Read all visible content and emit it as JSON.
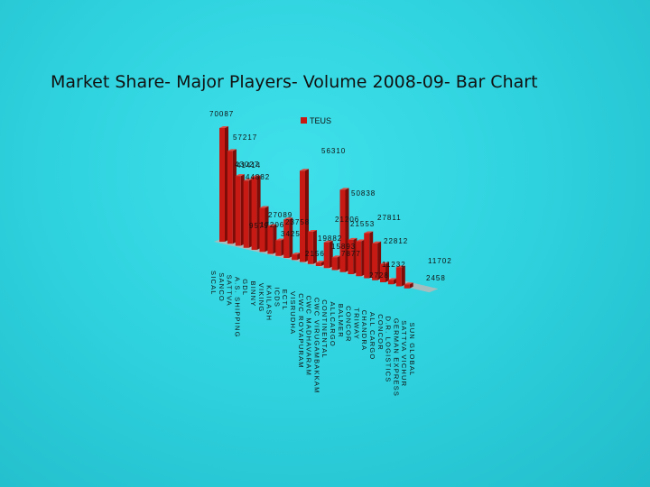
{
  "title": "Market Share- Major Players- Volume 2008-09- Bar Chart",
  "colors": {
    "bar": "#c81a14",
    "bar_side": "#7d0c08",
    "bar_top": "#e04a40",
    "floor": "#b8b8b8",
    "background": "#2fd3df"
  },
  "chart_data": {
    "type": "bar",
    "title": "Market Share- Major Players- Volume 2008-09- Bar Chart",
    "xlabel": "",
    "ylabel": "",
    "legend": {
      "position": "top-right",
      "entries": [
        "TEUS"
      ]
    },
    "categories": [
      "SICAL",
      "SANCO",
      "SATTVA",
      "A.S. SHIPPING",
      "GDL",
      "BINNY",
      "VIKING",
      "KAILASH",
      "ICDS",
      "ECTL",
      "VISRUDHA",
      "CWC ROYAPURAM",
      "CWC MADHAVARAM",
      "CWC VIRUGAMBAKKAM",
      "CONTINENTAL",
      "ALLCARGO",
      "BALMER",
      "CONCOR",
      "TRIWAY",
      "CHANDRA",
      "ALL CARGO",
      "CONCOR",
      "D.R. LOGISTICS",
      "GERMAN EXPRESS",
      "SATTVA VICHUR",
      "SUN GLOBAL"
    ],
    "series": [
      {
        "name": "TEUS",
        "values": [
          70087,
          57217,
          43027,
          41414,
          44882,
          27089,
          17206,
          9579,
          23758,
          3425,
          56310,
          19882,
          2156,
          15893,
          7877,
          50838,
          21206,
          21553,
          27811,
          22812,
          11232,
          2728,
          11702,
          2458,
          0,
          0
        ]
      }
    ],
    "value_labels": [
      "70087",
      "57217",
      "43027",
      "41414",
      "44882",
      "27089",
      "17206",
      "9579",
      "23758",
      "3425",
      "56310",
      "19882",
      "2156",
      "15893",
      "7877",
      "50838",
      "21206",
      "21553",
      "27811",
      "22812",
      "11232",
      "2728",
      "11702",
      "2458"
    ]
  }
}
